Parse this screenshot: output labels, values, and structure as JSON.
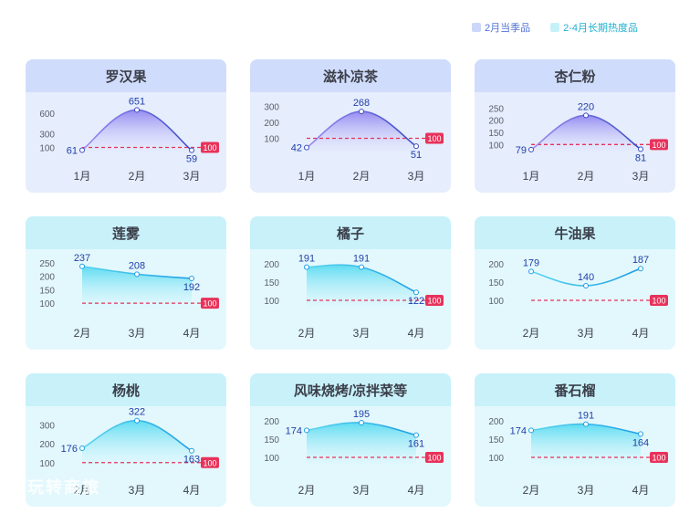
{
  "legend": {
    "autumn_label": "2月当季品",
    "autumn_color": "#5574d6",
    "autumn_swatch": "#cbd8fa",
    "spring_label": "2-4月长期热度品",
    "spring_color": "#20b0cf",
    "spring_swatch": "#c7f1f9"
  },
  "baseline_label": "100",
  "baseline_color": "#e8325a",
  "watermark": "玩转商旅",
  "chart_data": [
    {
      "type": "area",
      "title": "罗汉果",
      "group": "autumn",
      "categories": [
        "1月",
        "2月",
        "3月"
      ],
      "values": [
        61,
        651,
        59
      ],
      "yticks": [
        100,
        300,
        600
      ],
      "ylim": [
        0,
        750
      ],
      "baseline": 100
    },
    {
      "type": "area",
      "title": "滋补凉茶",
      "group": "autumn",
      "categories": [
        "1月",
        "2月",
        "3月"
      ],
      "values": [
        42,
        268,
        51
      ],
      "yticks": [
        100,
        200,
        300
      ],
      "ylim": [
        0,
        320
      ],
      "baseline": 100
    },
    {
      "type": "area",
      "title": "杏仁粉",
      "group": "autumn",
      "categories": [
        "1月",
        "2月",
        "3月"
      ],
      "values": [
        79,
        220,
        81
      ],
      "yticks": [
        100,
        150,
        200,
        250
      ],
      "ylim": [
        60,
        270
      ],
      "baseline": 100
    },
    {
      "type": "area",
      "title": "莲雾",
      "group": "spring",
      "categories": [
        "2月",
        "3月",
        "4月"
      ],
      "values": [
        237,
        208,
        192
      ],
      "yticks": [
        100,
        150,
        200,
        250
      ],
      "ylim": [
        70,
        260
      ],
      "baseline": 100
    },
    {
      "type": "area",
      "title": "橘子",
      "group": "spring",
      "categories": [
        "2月",
        "3月",
        "4月"
      ],
      "values": [
        191,
        191,
        122
      ],
      "yticks": [
        100,
        150,
        200
      ],
      "ylim": [
        70,
        210
      ],
      "baseline": 100
    },
    {
      "type": "line",
      "title": "牛油果",
      "group": "spring",
      "categories": [
        "2月",
        "3月",
        "4月"
      ],
      "values": [
        179,
        140,
        187
      ],
      "yticks": [
        100,
        150,
        200
      ],
      "ylim": [
        70,
        210
      ],
      "baseline": 100
    },
    {
      "type": "area",
      "title": "杨桃",
      "group": "spring",
      "categories": [
        "2月",
        "3月",
        "4月"
      ],
      "values": [
        176,
        322,
        163
      ],
      "yticks": [
        100,
        200,
        300
      ],
      "ylim": [
        70,
        340
      ],
      "baseline": 100
    },
    {
      "type": "area",
      "title": "风味烧烤/凉拌菜等",
      "group": "spring",
      "categories": [
        "2月",
        "3月",
        "4月"
      ],
      "values": [
        174,
        195,
        161
      ],
      "yticks": [
        100,
        150,
        200
      ],
      "ylim": [
        70,
        210
      ],
      "baseline": 100
    },
    {
      "type": "area",
      "title": "番石榴",
      "group": "spring",
      "categories": [
        "2月",
        "3月",
        "4月"
      ],
      "values": [
        174,
        191,
        164
      ],
      "yticks": [
        100,
        150,
        200
      ],
      "ylim": [
        70,
        210
      ],
      "baseline": 100
    }
  ]
}
